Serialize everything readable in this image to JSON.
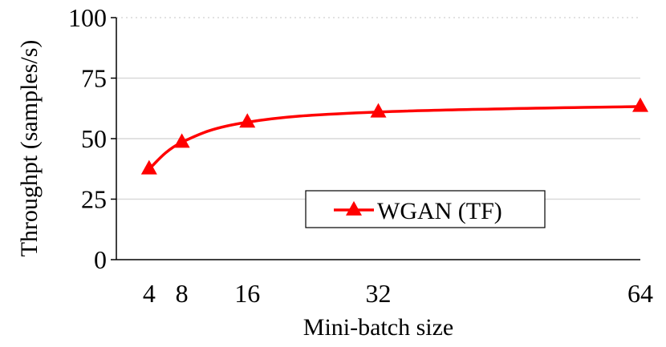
{
  "chart_data": {
    "type": "line",
    "title": "",
    "xlabel": "Mini-batch size",
    "ylabel": "Throughpt (samples/s)",
    "x": [
      4,
      8,
      16,
      32,
      64
    ],
    "x_ticks": [
      "4",
      "8",
      "16",
      "32",
      "64"
    ],
    "y_ticks": [
      "0",
      "25",
      "50",
      "75",
      "100"
    ],
    "xlim": [
      0,
      64
    ],
    "ylim": [
      0,
      100
    ],
    "grid": "horizontal",
    "legend_position": "center-right",
    "series": [
      {
        "name": "WGAN (TF)",
        "values": [
          37.5,
          48.5,
          56.8,
          61.0,
          63.3
        ],
        "color": "#ff0000",
        "marker": "triangle"
      }
    ]
  }
}
